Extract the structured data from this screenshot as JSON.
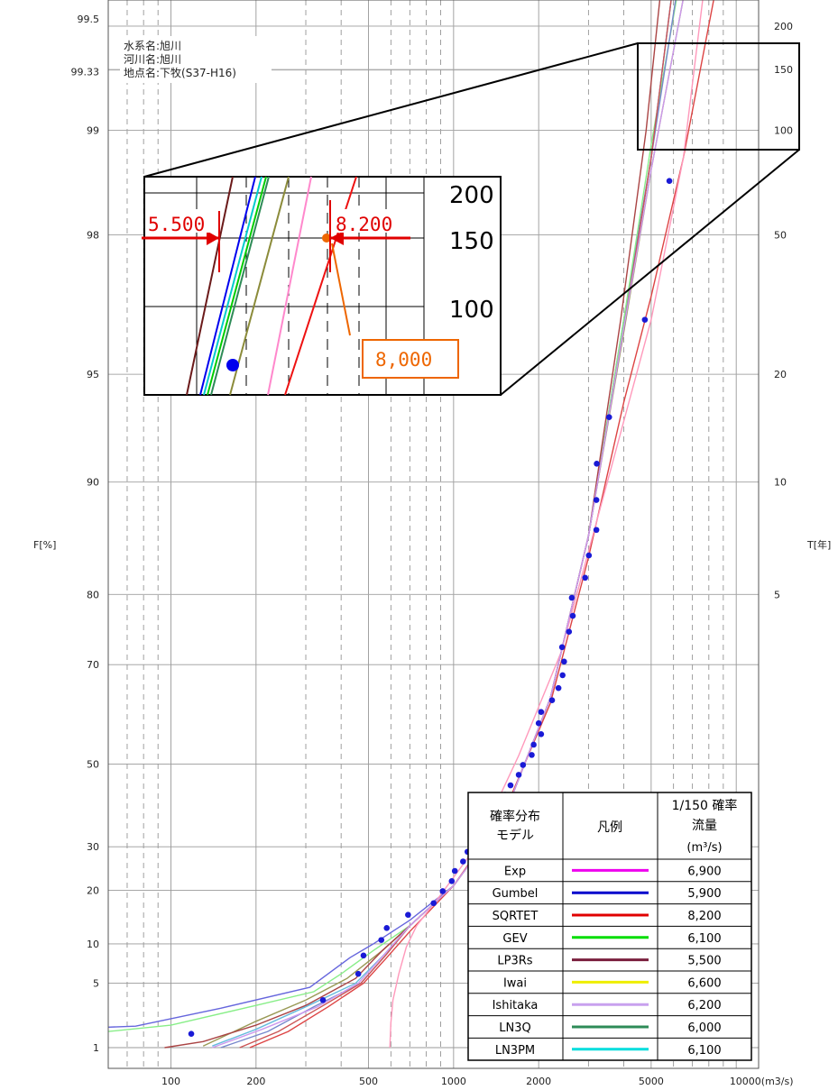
{
  "chart_data": {
    "type": "probability_plot",
    "x_axis": {
      "scale": "log",
      "range": [
        60,
        12000
      ],
      "tick_values": [
        100,
        200,
        500,
        1000,
        2000,
        5000,
        10000
      ],
      "tick_labels": [
        "100",
        "200",
        "500",
        "1000",
        "2000",
        "5000",
        "10000(m3/s)"
      ]
    },
    "y_axis_left": {
      "label": "F[%]",
      "scale": "gumbel",
      "tick_values": [
        1,
        5,
        10,
        20,
        30,
        50,
        70,
        80,
        90,
        95,
        98,
        99,
        99.33,
        99.5
      ],
      "tick_labels": [
        "1",
        "5",
        "10",
        "20",
        "30",
        "50",
        "70",
        "80",
        "90",
        "95",
        "98",
        "99",
        "99.33",
        "99.5"
      ]
    },
    "y_axis_right": {
      "label": "T[年]",
      "tick_values": [
        5,
        10,
        20,
        50,
        100,
        150,
        200
      ],
      "tick_labels": [
        "5",
        "10",
        "20",
        "50",
        "100",
        "150",
        "200"
      ]
    },
    "station_info": [
      "水系名:旭川",
      "河川名:旭川",
      "地点名:下牧(S37-H16)"
    ],
    "observed_points": [
      [
        118,
        1.5
      ],
      [
        345,
        3.5
      ],
      [
        460,
        6
      ],
      [
        480,
        8.3
      ],
      [
        555,
        10.6
      ],
      [
        580,
        12.6
      ],
      [
        690,
        15
      ],
      [
        850,
        17.3
      ],
      [
        915,
        19.8
      ],
      [
        985,
        22
      ],
      [
        1010,
        24.3
      ],
      [
        1080,
        26.5
      ],
      [
        1120,
        28.8
      ],
      [
        1190,
        31.2
      ],
      [
        1220,
        33.5
      ],
      [
        1265,
        35.8
      ],
      [
        1300,
        38.1
      ],
      [
        1460,
        40.4
      ],
      [
        1520,
        42.7
      ],
      [
        1590,
        45
      ],
      [
        1700,
        47.5
      ],
      [
        1760,
        49.8
      ],
      [
        1890,
        52.1
      ],
      [
        1920,
        54.4
      ],
      [
        2040,
        56.7
      ],
      [
        2000,
        59
      ],
      [
        2040,
        61.3
      ],
      [
        2230,
        63.6
      ],
      [
        2350,
        65.9
      ],
      [
        2430,
        68.2
      ],
      [
        2460,
        70.5
      ],
      [
        2420,
        72.8
      ],
      [
        2560,
        75.1
      ],
      [
        2640,
        77.3
      ],
      [
        2620,
        79.6
      ],
      [
        2920,
        81.9
      ],
      [
        3010,
        84.2
      ],
      [
        3200,
        86.5
      ],
      [
        3200,
        88.8
      ],
      [
        3210,
        91.1
      ],
      [
        3550,
        93.4
      ],
      [
        4750,
        96.5
      ],
      [
        5800,
        98.6
      ]
    ],
    "series": [
      {
        "name": "Exp",
        "color": "#ee00ee",
        "q150": "6,900"
      },
      {
        "name": "Gumbel",
        "color": "#0000cc",
        "q150": "5,900"
      },
      {
        "name": "SQRTET",
        "color": "#e00000",
        "q150": "8,200"
      },
      {
        "name": "GEV",
        "color": "#00dd00",
        "q150": "6,100"
      },
      {
        "name": "LP3Rs",
        "color": "#7a1f3d",
        "q150": "5,500"
      },
      {
        "name": "Iwai",
        "color": "#eeee00",
        "q150": "6,600"
      },
      {
        "name": "Ishitaka",
        "color": "#c8a0ee",
        "q150": "6,200"
      },
      {
        "name": "LN3Q",
        "color": "#2e8b57",
        "q150": "6,000"
      },
      {
        "name": "LN3PM",
        "color": "#00dddd",
        "q150": "6,100"
      }
    ],
    "drawn_curves": [
      {
        "color": "#6666dd",
        "points": [
          [
            60,
            1.8
          ],
          [
            75,
            1.85
          ],
          [
            150,
            2.9
          ],
          [
            310,
            4.6
          ],
          [
            430,
            8
          ],
          [
            520,
            10
          ],
          [
            700,
            14
          ],
          [
            1000,
            21
          ],
          [
            1500,
            37
          ],
          [
            2200,
            64
          ],
          [
            3000,
            86
          ],
          [
            4000,
            96.5
          ],
          [
            5000,
            98.8
          ],
          [
            6200,
            99.7
          ]
        ]
      },
      {
        "color": "#88ee88",
        "points": [
          [
            60,
            1.6
          ],
          [
            100,
            1.9
          ],
          [
            200,
            3.1
          ],
          [
            320,
            4.2
          ],
          [
            400,
            6
          ],
          [
            520,
            9
          ],
          [
            700,
            13
          ],
          [
            1000,
            21
          ],
          [
            1500,
            37
          ],
          [
            2200,
            64
          ],
          [
            3000,
            86
          ],
          [
            4000,
            96.5
          ],
          [
            5000,
            98.9
          ],
          [
            6600,
            99.7
          ]
        ]
      },
      {
        "color": "#999955",
        "points": [
          [
            130,
            1.05
          ],
          [
            200,
            2.1
          ],
          [
            300,
            3.5
          ],
          [
            420,
            5.5
          ],
          [
            560,
            9
          ],
          [
            700,
            13
          ],
          [
            1000,
            21
          ],
          [
            1500,
            37
          ],
          [
            2200,
            64
          ],
          [
            3000,
            86
          ],
          [
            4000,
            96.2
          ],
          [
            5000,
            98.7
          ],
          [
            7000,
            99.7
          ]
        ]
      },
      {
        "color": "#aa4444",
        "points": [
          [
            95,
            1
          ],
          [
            130,
            1.2
          ],
          [
            200,
            1.9
          ],
          [
            300,
            3.1
          ],
          [
            450,
            5.5
          ],
          [
            560,
            9
          ],
          [
            700,
            13
          ],
          [
            1000,
            21
          ],
          [
            1500,
            37
          ],
          [
            2200,
            64
          ],
          [
            3000,
            86
          ],
          [
            3900,
            96.5
          ],
          [
            4800,
            99
          ],
          [
            5600,
            99.7
          ]
        ]
      },
      {
        "color": "#66bbdd",
        "points": [
          [
            140,
            1.05
          ],
          [
            200,
            1.7
          ],
          [
            300,
            3
          ],
          [
            450,
            5
          ],
          [
            570,
            8.5
          ],
          [
            700,
            13
          ],
          [
            1000,
            21
          ],
          [
            1500,
            37
          ],
          [
            2200,
            64
          ],
          [
            3000,
            86
          ],
          [
            4000,
            96.3
          ],
          [
            5000,
            98.8
          ],
          [
            6200,
            99.7
          ]
        ]
      },
      {
        "color": "#7788cc",
        "points": [
          [
            150,
            1
          ],
          [
            220,
            1.6
          ],
          [
            320,
            3
          ],
          [
            470,
            5
          ],
          [
            580,
            8.5
          ],
          [
            700,
            13
          ],
          [
            1000,
            21
          ],
          [
            1500,
            37
          ],
          [
            2200,
            64
          ],
          [
            3000,
            86
          ],
          [
            4000,
            96.3
          ],
          [
            5000,
            98.8
          ],
          [
            6500,
            99.7
          ]
        ]
      },
      {
        "color": "#dd4444",
        "points": [
          [
            190,
            1
          ],
          [
            260,
            1.6
          ],
          [
            360,
            3
          ],
          [
            480,
            5
          ],
          [
            580,
            8
          ],
          [
            700,
            12
          ],
          [
            1000,
            21
          ],
          [
            1500,
            38
          ],
          [
            2200,
            63
          ],
          [
            3000,
            84
          ],
          [
            4000,
            94
          ],
          [
            5000,
            97
          ],
          [
            6500,
            98.8
          ],
          [
            9000,
            99.7
          ]
        ]
      },
      {
        "color": "#cc5555",
        "points": [
          [
            175,
            1
          ],
          [
            240,
            1.6
          ],
          [
            340,
            3
          ],
          [
            470,
            5
          ],
          [
            580,
            8.5
          ],
          [
            700,
            13
          ],
          [
            1000,
            21
          ],
          [
            1500,
            37
          ],
          [
            2200,
            64
          ],
          [
            3000,
            86
          ],
          [
            4000,
            96.3
          ],
          [
            5000,
            98.8
          ],
          [
            6200,
            99.7
          ]
        ]
      },
      {
        "color": "#ff99bb",
        "points": [
          [
            595,
            1
          ],
          [
            600,
            2
          ],
          [
            610,
            3.5
          ],
          [
            640,
            6
          ],
          [
            680,
            9.5
          ],
          [
            740,
            13
          ],
          [
            900,
            19
          ],
          [
            1200,
            30
          ],
          [
            1700,
            52
          ],
          [
            2400,
            72
          ],
          [
            3500,
            90
          ],
          [
            5000,
            96.5
          ],
          [
            6500,
            98.8
          ],
          [
            8000,
            99.7
          ]
        ]
      },
      {
        "color": "#cc99ee",
        "points": [
          [
            140,
            1
          ],
          [
            210,
            1.7
          ],
          [
            330,
            3
          ],
          [
            460,
            5
          ],
          [
            570,
            8.5
          ],
          [
            700,
            13
          ],
          [
            1000,
            21
          ],
          [
            1500,
            37
          ],
          [
            2200,
            64
          ],
          [
            3000,
            86
          ],
          [
            4000,
            96.3
          ],
          [
            5000,
            98.7
          ],
          [
            7000,
            99.7
          ]
        ]
      }
    ],
    "inset": {
      "tick_labels": [
        "200",
        "150",
        "100"
      ],
      "left_value_label": "5.500",
      "right_value_label": "8.200",
      "orange_value_label": "8,000"
    },
    "legend_table": {
      "col1_header": [
        "確率分布",
        "モデル"
      ],
      "col2_header": "凡例",
      "col3_header": [
        "1/150 確率",
        "流量",
        "(m³/s)"
      ]
    }
  }
}
